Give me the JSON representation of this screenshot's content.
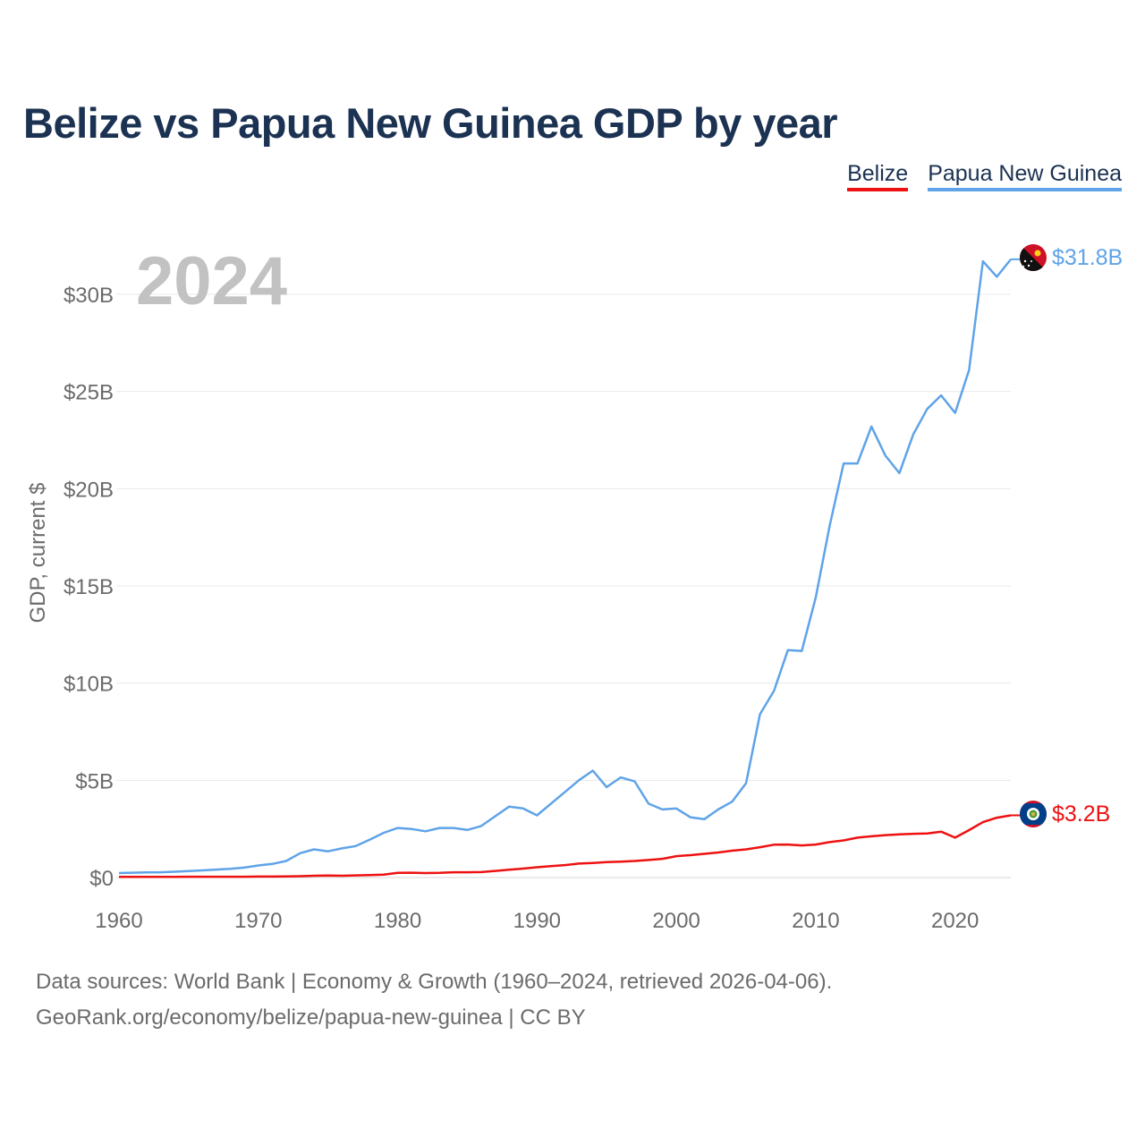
{
  "title": "Belize vs Papua New Guinea GDP by year",
  "legend": [
    {
      "label": "Belize",
      "color": "#ee1111"
    },
    {
      "label": "Papua New Guinea",
      "color": "#5fa3e8"
    }
  ],
  "footer": {
    "source": "Data sources: World Bank | Economy & Growth (1960–2024, retrieved 2026-04-06).",
    "credit": "GeoRank.org/economy/belize/papua-new-guinea | CC BY"
  },
  "chart_data": {
    "type": "line",
    "year_label": "2024",
    "ylabel": "GDP, current $",
    "xlabel": "",
    "xlim": [
      1960,
      2024
    ],
    "ylim": [
      0,
      32
    ],
    "x_ticks": [
      "1960",
      "1970",
      "1980",
      "1990",
      "2000",
      "2010",
      "2020"
    ],
    "y_ticks": [
      "$0",
      "$5B",
      "$10B",
      "$15B",
      "$20B",
      "$25B",
      "$30B"
    ],
    "x": [
      1960,
      1961,
      1962,
      1963,
      1964,
      1965,
      1966,
      1967,
      1968,
      1969,
      1970,
      1971,
      1972,
      1973,
      1974,
      1975,
      1976,
      1977,
      1978,
      1979,
      1980,
      1981,
      1982,
      1983,
      1984,
      1985,
      1986,
      1987,
      1988,
      1989,
      1990,
      1991,
      1992,
      1993,
      1994,
      1995,
      1996,
      1997,
      1998,
      1999,
      2000,
      2001,
      2002,
      2003,
      2004,
      2005,
      2006,
      2007,
      2008,
      2009,
      2010,
      2011,
      2012,
      2013,
      2014,
      2015,
      2016,
      2017,
      2018,
      2019,
      2020,
      2021,
      2022,
      2023,
      2024
    ],
    "series": [
      {
        "name": "Papua New Guinea",
        "color": "#5fa3e8",
        "end_label": "$31.8B",
        "values": [
          0.23,
          0.25,
          0.26,
          0.27,
          0.3,
          0.33,
          0.37,
          0.41,
          0.45,
          0.51,
          0.62,
          0.7,
          0.85,
          1.25,
          1.45,
          1.35,
          1.5,
          1.62,
          1.95,
          2.3,
          2.55,
          2.5,
          2.38,
          2.55,
          2.55,
          2.45,
          2.65,
          3.15,
          3.65,
          3.55,
          3.2,
          3.8,
          4.4,
          5.0,
          5.5,
          4.65,
          5.15,
          4.95,
          3.8,
          3.5,
          3.55,
          3.1,
          3.0,
          3.5,
          3.9,
          4.85,
          8.4,
          9.6,
          11.7,
          11.65,
          14.4,
          18.1,
          21.3,
          21.3,
          23.2,
          21.7,
          20.8,
          22.8,
          24.1,
          24.8,
          23.9,
          26.1,
          31.7,
          30.9,
          31.8
        ]
      },
      {
        "name": "Belize",
        "color": "#ee1111",
        "end_label": "$3.2B",
        "values": [
          0.03,
          0.03,
          0.03,
          0.03,
          0.03,
          0.04,
          0.04,
          0.04,
          0.04,
          0.04,
          0.05,
          0.05,
          0.06,
          0.07,
          0.09,
          0.1,
          0.09,
          0.11,
          0.13,
          0.15,
          0.24,
          0.25,
          0.23,
          0.24,
          0.27,
          0.27,
          0.28,
          0.34,
          0.4,
          0.46,
          0.53,
          0.59,
          0.64,
          0.72,
          0.75,
          0.79,
          0.82,
          0.85,
          0.9,
          0.96,
          1.1,
          1.15,
          1.22,
          1.29,
          1.38,
          1.45,
          1.56,
          1.69,
          1.7,
          1.65,
          1.7,
          1.82,
          1.91,
          2.05,
          2.12,
          2.18,
          2.22,
          2.25,
          2.27,
          2.36,
          2.05,
          2.44,
          2.85,
          3.08,
          3.2
        ]
      }
    ]
  }
}
